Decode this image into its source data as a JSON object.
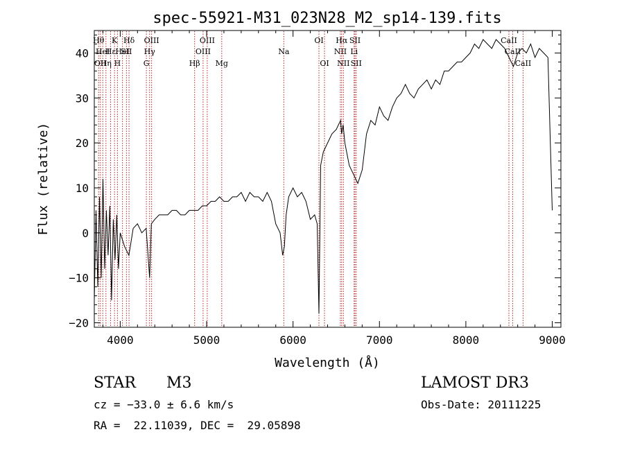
{
  "chart_data": {
    "type": "line",
    "title": "spec-55921-M31_023N28_M2_sp14-139.fits",
    "xlabel": "Wavelength (Å)",
    "ylabel": "Flux (relative)",
    "xlim": [
      3700,
      9100
    ],
    "ylim": [
      -21,
      45
    ],
    "xticks": [
      4000,
      5000,
      6000,
      7000,
      8000,
      9000
    ],
    "yticks": [
      -20,
      -10,
      0,
      10,
      20,
      30,
      40
    ],
    "grid": false,
    "series": [
      {
        "name": "flux",
        "x": [
          3700,
          3720,
          3740,
          3760,
          3780,
          3800,
          3820,
          3840,
          3860,
          3880,
          3900,
          3920,
          3940,
          3960,
          3980,
          4000,
          4050,
          4100,
          4150,
          4200,
          4250,
          4300,
          4340,
          4360,
          4400,
          4450,
          4500,
          4550,
          4600,
          4650,
          4700,
          4750,
          4800,
          4850,
          4900,
          4950,
          5000,
          5050,
          5100,
          5150,
          5200,
          5250,
          5300,
          5350,
          5400,
          5450,
          5500,
          5550,
          5600,
          5650,
          5700,
          5750,
          5800,
          5850,
          5880,
          5900,
          5920,
          5950,
          6000,
          6050,
          6100,
          6150,
          6200,
          6250,
          6280,
          6300,
          6320,
          6350,
          6400,
          6450,
          6500,
          6550,
          6563,
          6580,
          6600,
          6650,
          6700,
          6750,
          6800,
          6850,
          6900,
          6950,
          7000,
          7050,
          7100,
          7150,
          7200,
          7250,
          7300,
          7350,
          7400,
          7450,
          7500,
          7550,
          7600,
          7650,
          7700,
          7750,
          7800,
          7850,
          7900,
          7950,
          8000,
          8050,
          8100,
          8150,
          8200,
          8250,
          8300,
          8350,
          8400,
          8450,
          8500,
          8550,
          8600,
          8650,
          8700,
          8750,
          8800,
          8850,
          8900,
          8950,
          9000
        ],
        "values": [
          -15,
          5,
          -12,
          8,
          -10,
          12,
          -8,
          5,
          -5,
          6,
          -15,
          3,
          -6,
          4,
          -8,
          0,
          -3,
          -5,
          1,
          2,
          0,
          1,
          -10,
          2,
          3,
          4,
          4,
          4,
          5,
          5,
          4,
          4,
          5,
          5,
          5,
          6,
          6,
          7,
          7,
          8,
          7,
          7,
          8,
          8,
          9,
          7,
          9,
          8,
          8,
          7,
          9,
          7,
          2,
          0,
          -5,
          -3,
          4,
          8,
          10,
          8,
          9,
          7,
          3,
          4,
          2,
          -18,
          15,
          18,
          20,
          22,
          23,
          25,
          22,
          24,
          20,
          15,
          13,
          11,
          14,
          22,
          25,
          24,
          28,
          26,
          25,
          28,
          30,
          31,
          33,
          31,
          30,
          32,
          33,
          34,
          32,
          34,
          33,
          36,
          36,
          37,
          38,
          38,
          39,
          40,
          42,
          41,
          43,
          42,
          41,
          43,
          42,
          41,
          39,
          37,
          40,
          41,
          40,
          42,
          39,
          41,
          40,
          39,
          5
        ]
      }
    ],
    "lines": [
      {
        "x": 3750,
        "label": "Hθ",
        "row": 1
      },
      {
        "x": 3770,
        "label": "OII",
        "row": 3
      },
      {
        "x": 3798,
        "label": "HeI",
        "row": 2
      },
      {
        "x": 3835,
        "label": "Hη",
        "row": 3
      },
      {
        "x": 3889,
        "label": "Hε",
        "row": 2
      },
      {
        "x": 3934,
        "label": "K",
        "row": 1
      },
      {
        "x": 3968,
        "label": "H",
        "row": 3
      },
      {
        "x": 4026,
        "label": "HeI",
        "row": 2
      },
      {
        "x": 4072,
        "label": "SII",
        "row": 2
      },
      {
        "x": 4102,
        "label": "Hδ",
        "row": 1
      },
      {
        "x": 4303,
        "label": "G",
        "row": 3
      },
      {
        "x": 4340,
        "label": "Hγ",
        "row": 2
      },
      {
        "x": 4363,
        "label": "OIII",
        "row": 1
      },
      {
        "x": 4861,
        "label": "Hβ",
        "row": 3
      },
      {
        "x": 4959,
        "label": "OIII",
        "row": 2
      },
      {
        "x": 5007,
        "label": "OIII",
        "row": 1
      },
      {
        "x": 5175,
        "label": "Mg",
        "row": 3
      },
      {
        "x": 5893,
        "label": "Na",
        "row": 2
      },
      {
        "x": 6300,
        "label": "OI",
        "row": 1
      },
      {
        "x": 6364,
        "label": "OI",
        "row": 3
      },
      {
        "x": 6548,
        "label": "NII",
        "row": 2
      },
      {
        "x": 6563,
        "label": "Hα",
        "row": 1
      },
      {
        "x": 6583,
        "label": "NII",
        "row": 3
      },
      {
        "x": 6707,
        "label": "Li",
        "row": 2
      },
      {
        "x": 6717,
        "label": "SII",
        "row": 1
      },
      {
        "x": 6731,
        "label": "SII",
        "row": 3
      },
      {
        "x": 8498,
        "label": "CaII",
        "row": 1
      },
      {
        "x": 8542,
        "label": "CaII",
        "row": 2
      },
      {
        "x": 8662,
        "label": "CaII",
        "row": 3
      }
    ]
  },
  "info": {
    "class": "STAR",
    "subclass": "M3",
    "survey": "LAMOST DR3",
    "cz": "cz = −33.0 ± 6.6 km/s",
    "obs_date": "Obs-Date: 20111225",
    "radec": "RA =  22.11039, DEC =  29.05898"
  }
}
